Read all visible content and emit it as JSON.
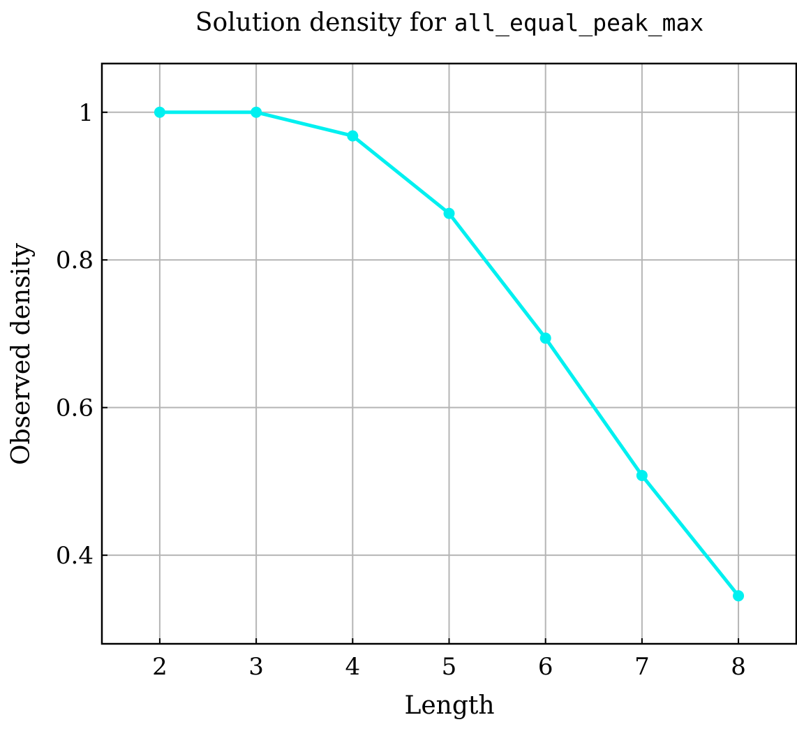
{
  "chart_data": {
    "type": "line",
    "title_prefix": "Solution density for ",
    "title_code": "all_equal_peak_max",
    "xlabel": "Length",
    "ylabel": "Observed density",
    "x": [
      2,
      3,
      4,
      5,
      6,
      7,
      8
    ],
    "xticks": [
      "2",
      "3",
      "4",
      "5",
      "6",
      "7",
      "8"
    ],
    "yticks": [
      {
        "value": 0.4,
        "label": "0.4"
      },
      {
        "value": 0.6,
        "label": "0.6"
      },
      {
        "value": 0.8,
        "label": "0.8"
      },
      {
        "value": 1.0,
        "label": "1"
      }
    ],
    "xlim": [
      1.4,
      8.6
    ],
    "ylim": [
      0.28,
      1.066
    ],
    "grid": true,
    "legend": "none",
    "series": [
      {
        "color": "#00f0f0",
        "values": [
          1.0,
          1.0,
          0.968,
          0.863,
          0.694,
          0.508,
          0.345
        ]
      }
    ]
  }
}
